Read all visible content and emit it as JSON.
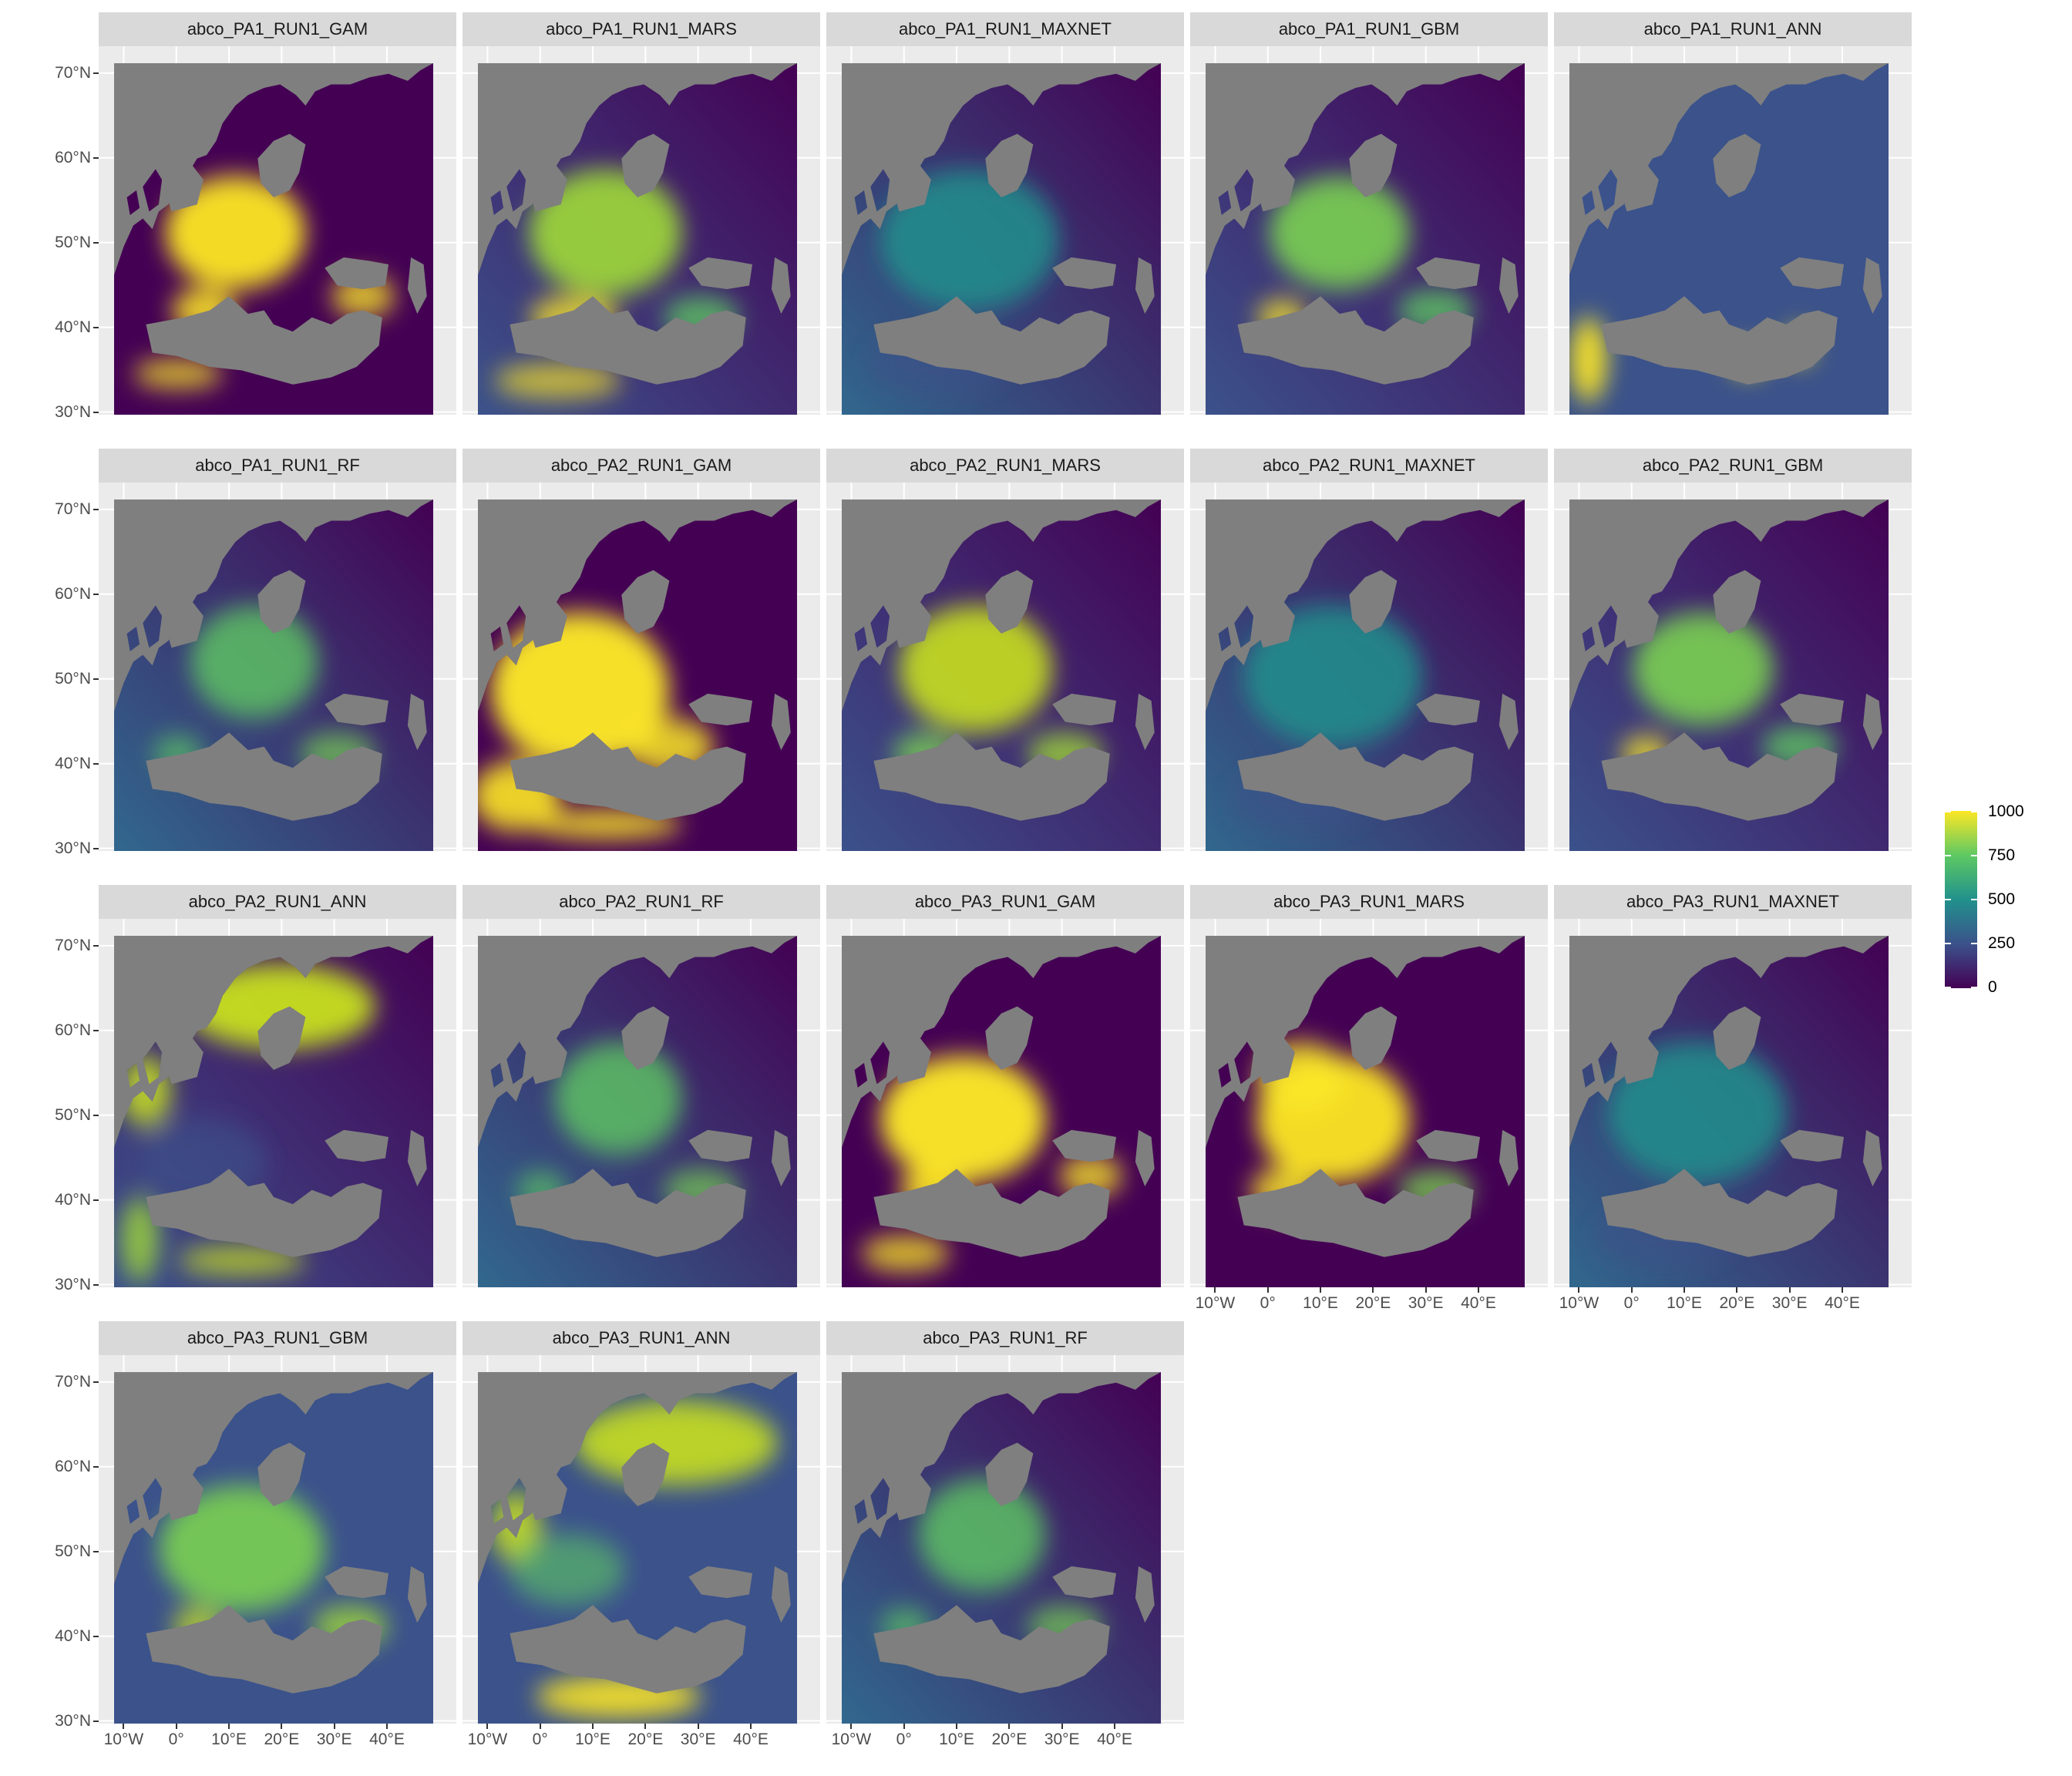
{
  "panels": [
    {
      "title": "abco_PA1_RUN1_GAM",
      "pattern": "gam1"
    },
    {
      "title": "abco_PA1_RUN1_MARS",
      "pattern": "mars1"
    },
    {
      "title": "abco_PA1_RUN1_MAXNET",
      "pattern": "maxnet"
    },
    {
      "title": "abco_PA1_RUN1_GBM",
      "pattern": "gbm"
    },
    {
      "title": "abco_PA1_RUN1_ANN",
      "pattern": "ann1"
    },
    {
      "title": "abco_PA1_RUN1_RF",
      "pattern": "rf"
    },
    {
      "title": "abco_PA2_RUN1_GAM",
      "pattern": "gam2"
    },
    {
      "title": "abco_PA2_RUN1_MARS",
      "pattern": "mars2"
    },
    {
      "title": "abco_PA2_RUN1_MAXNET",
      "pattern": "maxnet"
    },
    {
      "title": "abco_PA2_RUN1_GBM",
      "pattern": "gbm"
    },
    {
      "title": "abco_PA2_RUN1_ANN",
      "pattern": "ann2"
    },
    {
      "title": "abco_PA2_RUN1_RF",
      "pattern": "rf"
    },
    {
      "title": "abco_PA3_RUN1_GAM",
      "pattern": "gam3"
    },
    {
      "title": "abco_PA3_RUN1_MARS",
      "pattern": "mars3"
    },
    {
      "title": "abco_PA3_RUN1_MAXNET",
      "pattern": "maxnet"
    },
    {
      "title": "abco_PA3_RUN1_GBM",
      "pattern": "gbm3"
    },
    {
      "title": "abco_PA3_RUN1_ANN",
      "pattern": "ann3"
    },
    {
      "title": "abco_PA3_RUN1_RF",
      "pattern": "rf"
    }
  ],
  "y_axis_labels": [
    "70°N",
    "60°N",
    "50°N",
    "40°N",
    "30°N"
  ],
  "x_axis_labels": [
    "10°W",
    "0°",
    "10°E",
    "20°E",
    "30°E",
    "40°E"
  ],
  "legend": {
    "labels": [
      "1000",
      "750",
      "500",
      "250",
      "0"
    ],
    "range": [
      0,
      1000
    ],
    "colors": [
      "#440154",
      "#3b528b",
      "#21918c",
      "#5ec962",
      "#fde725"
    ]
  },
  "colors": {
    "panel_background": "#ebebeb",
    "strip_background": "#d9d9d9",
    "na_gray": "#7f7f7f",
    "low": "#440154",
    "high": "#fde725"
  }
}
